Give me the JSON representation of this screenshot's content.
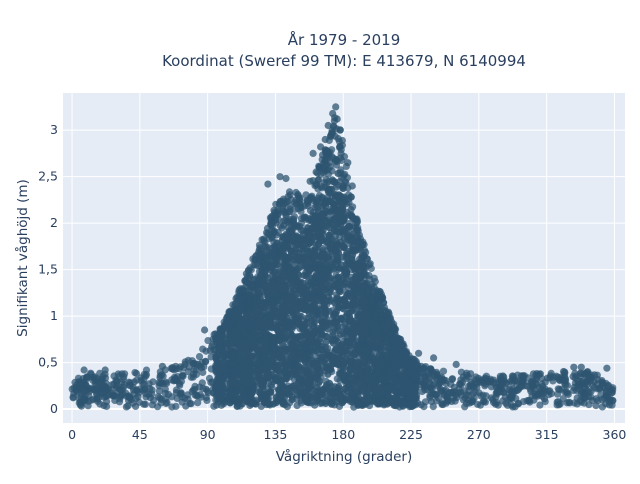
{
  "chart_data": {
    "type": "scatter",
    "title_line1": "År 1979 - 2019",
    "title_line2": "Koordinat (Sweref 99 TM): E 413679, N 6140994",
    "xlabel": "Vågriktning (grader)",
    "ylabel": "Signifikant våghöjd (m)",
    "xlim": [
      -6,
      367
    ],
    "ylim": [
      -0.15,
      3.4
    ],
    "x_ticks": [
      0,
      45,
      90,
      135,
      180,
      225,
      270,
      315,
      360
    ],
    "x_tick_labels": [
      "0",
      "45",
      "90",
      "135",
      "180",
      "225",
      "270",
      "315",
      "360"
    ],
    "y_ticks": [
      0,
      0.5,
      1,
      1.5,
      2,
      2.5,
      3
    ],
    "y_tick_labels": [
      "0",
      "0,5",
      "1",
      "1,5",
      "2",
      "2,5",
      "3"
    ],
    "grid": true,
    "background": "#e5ecf6",
    "marker_color": "#2e5570",
    "envelope_upper": [
      [
        0,
        0.32
      ],
      [
        15,
        0.4
      ],
      [
        30,
        0.38
      ],
      [
        45,
        0.42
      ],
      [
        60,
        0.42
      ],
      [
        75,
        0.52
      ],
      [
        85,
        0.62
      ],
      [
        92,
        0.78
      ],
      [
        100,
        0.9
      ],
      [
        110,
        1.25
      ],
      [
        118,
        1.55
      ],
      [
        125,
        1.8
      ],
      [
        135,
        2.2
      ],
      [
        145,
        2.35
      ],
      [
        155,
        2.3
      ],
      [
        163,
        2.6
      ],
      [
        170,
        2.9
      ],
      [
        175,
        3.2
      ],
      [
        180,
        2.9
      ],
      [
        185,
        2.3
      ],
      [
        195,
        1.7
      ],
      [
        205,
        1.25
      ],
      [
        215,
        0.85
      ],
      [
        225,
        0.55
      ],
      [
        240,
        0.45
      ],
      [
        260,
        0.4
      ],
      [
        280,
        0.35
      ],
      [
        300,
        0.37
      ],
      [
        320,
        0.4
      ],
      [
        340,
        0.42
      ],
      [
        360,
        0.3
      ]
    ],
    "outliers": [
      [
        175,
        3.25
      ],
      [
        173,
        3.18
      ],
      [
        176,
        3.12
      ],
      [
        170,
        3.05
      ],
      [
        178,
        3.0
      ],
      [
        172,
        2.95
      ],
      [
        168,
        2.9
      ],
      [
        165,
        2.82
      ],
      [
        160,
        2.75
      ],
      [
        175,
        2.68
      ],
      [
        183,
        2.65
      ],
      [
        138,
        2.5
      ],
      [
        142,
        2.48
      ],
      [
        130,
        2.42
      ],
      [
        186,
        2.4
      ],
      [
        162,
        2.55
      ],
      [
        158,
        2.45
      ],
      [
        88,
        0.85
      ],
      [
        100,
        0.78
      ],
      [
        195,
        0.62
      ],
      [
        230,
        0.6
      ],
      [
        240,
        0.55
      ],
      [
        255,
        0.48
      ],
      [
        333,
        0.45
      ],
      [
        338,
        0.45
      ],
      [
        355,
        0.44
      ],
      [
        60,
        0.46
      ],
      [
        75,
        0.48
      ],
      [
        8,
        0.42
      ],
      [
        22,
        0.42
      ]
    ]
  }
}
